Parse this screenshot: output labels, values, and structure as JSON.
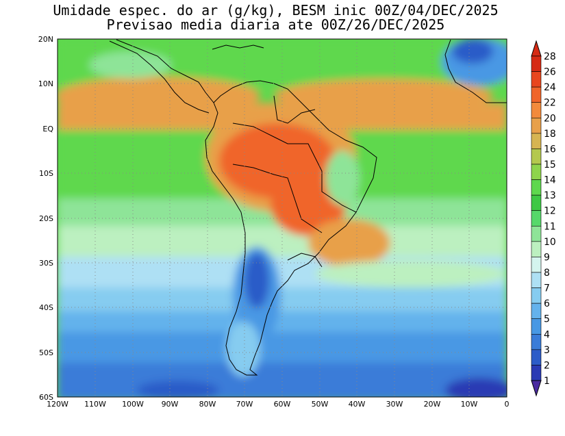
{
  "title_line1": "Umidade espec. do ar (g/kg), BESM inic 00Z/04/DEC/2025",
  "title_line2": "Previsao media diaria ate 00Z/26/DEC/2025",
  "lat_labels": [
    "20N",
    "10N",
    "EQ",
    "10S",
    "20S",
    "30S",
    "40S",
    "50S",
    "60S"
  ],
  "lon_labels": [
    "120W",
    "110W",
    "100W",
    "90W",
    "80W",
    "70W",
    "60W",
    "50W",
    "40W",
    "30W",
    "20W",
    "10W",
    "0"
  ],
  "colorbar": {
    "labels": [
      "28",
      "26",
      "24",
      "22",
      "20",
      "18",
      "16",
      "15",
      "14",
      "13",
      "12",
      "11",
      "10",
      "9",
      "8",
      "7",
      "6",
      "5",
      "4",
      "3",
      "2",
      "1"
    ],
    "colors": [
      "#d62a14",
      "#e8461e",
      "#f0652a",
      "#f28a3c",
      "#e8a04a",
      "#d6b452",
      "#b4c84e",
      "#8ed44c",
      "#5ed84e",
      "#3ec845",
      "#56d86a",
      "#8ee498",
      "#bcf0c0",
      "#d4f4ee",
      "#aee0f4",
      "#86ccf0",
      "#64b2ec",
      "#4898e4",
      "#3a7cd8",
      "#2c5cc8",
      "#2a3ab4",
      "#4a2aa0"
    ]
  }
}
